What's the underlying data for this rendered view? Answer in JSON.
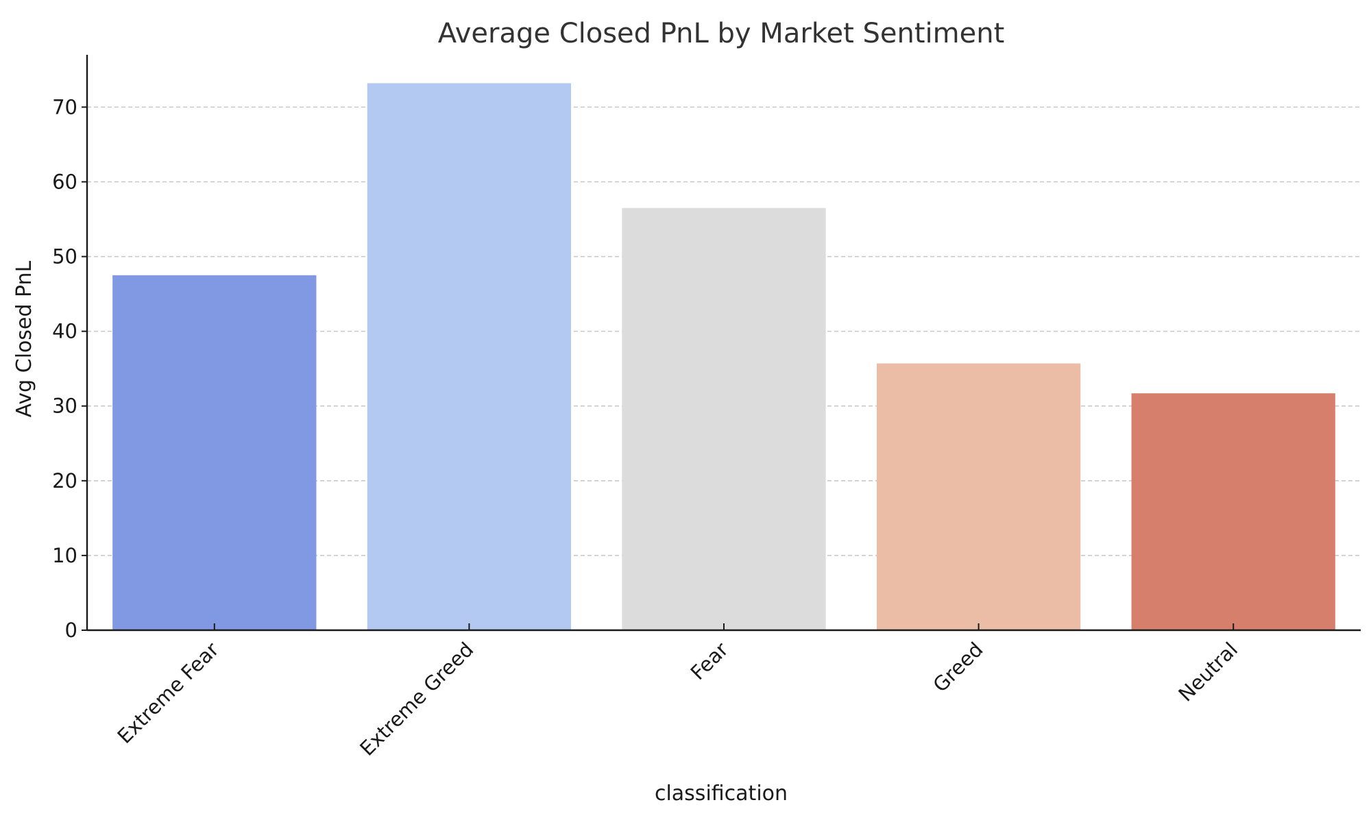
{
  "chart_data": {
    "type": "bar",
    "title": "Average Closed PnL by Market Sentiment",
    "xlabel": "classification",
    "ylabel": "Avg Closed PnL",
    "categories": [
      "Extreme Fear",
      "Extreme Greed",
      "Fear",
      "Greed",
      "Neutral"
    ],
    "values": [
      47.5,
      73.2,
      56.5,
      35.7,
      31.7
    ],
    "colors": [
      "#8199e2",
      "#b4c9f2",
      "#dcdcdc",
      "#ebbca6",
      "#d67f6c"
    ],
    "ylim": [
      0,
      77
    ],
    "yticks": [
      0,
      10,
      20,
      30,
      40,
      50,
      60,
      70
    ],
    "grid": "horizontal-dashed",
    "legend": "none"
  }
}
